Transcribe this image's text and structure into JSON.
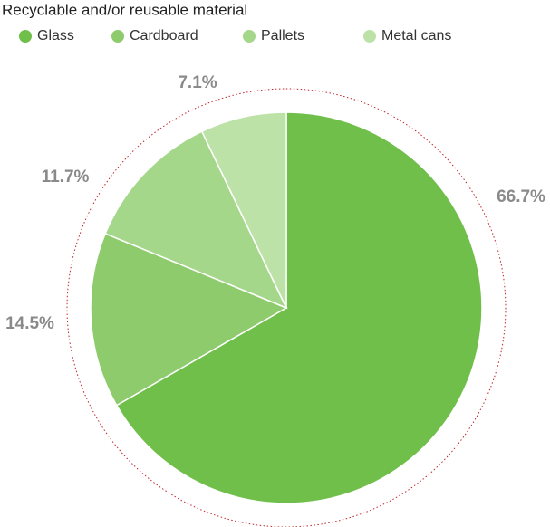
{
  "chart_data": {
    "type": "pie",
    "title": "Recyclable and/or reusable material",
    "categories": [
      "Glass",
      "Cardboard",
      "Pallets",
      "Metal cans"
    ],
    "values": [
      66.7,
      14.5,
      11.7,
      7.1
    ],
    "value_labels": [
      "66.7%",
      "14.5%",
      "11.7%",
      "7.1%"
    ],
    "colors": [
      "#6fbf4a",
      "#8ecb6c",
      "#a5d78b",
      "#bde2a8"
    ]
  }
}
